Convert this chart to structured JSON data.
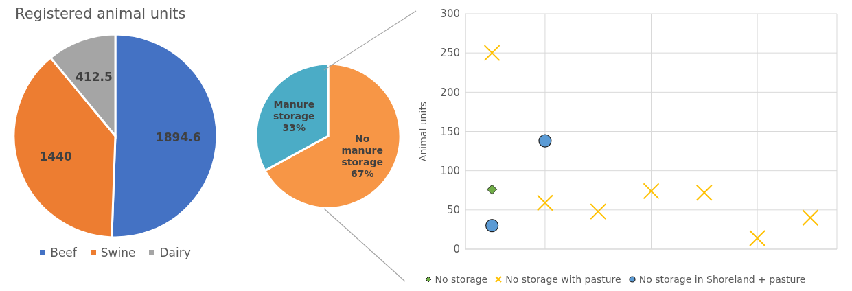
{
  "chart_data": [
    {
      "type": "pie",
      "title": "Registered animal units",
      "categories": [
        "Beef",
        "Swine",
        "Dairy"
      ],
      "values": [
        1894.6,
        1440,
        412.5
      ],
      "colors": [
        "#4472c4",
        "#ed7d31",
        "#a5a5a5"
      ],
      "data_labels": true,
      "legend": "bottom"
    },
    {
      "type": "pie",
      "categories": [
        "No manure storage",
        "Manure storage"
      ],
      "values": [
        67,
        33
      ],
      "colors": [
        "#f79646",
        "#4bacc6"
      ],
      "value_labels": [
        "67%",
        "33%"
      ],
      "legend": false
    },
    {
      "type": "scatter",
      "ylabel": "Animal units",
      "categories": [
        null,
        null,
        null,
        null,
        null,
        null,
        null
      ],
      "ylim": [
        0,
        300
      ],
      "yticks": [
        0,
        50,
        100,
        150,
        200,
        250,
        300
      ],
      "grid": true,
      "legend": "bottom",
      "tick_labels": "y",
      "series": [
        {
          "name": "No storage",
          "color": "#70ad47",
          "marker": "diamond",
          "values": [
            76,
            null,
            null,
            null,
            null,
            null,
            null
          ]
        },
        {
          "name": "No storage with pasture",
          "color": "#ffc000",
          "marker": "cross",
          "values": [
            250,
            59,
            48,
            74,
            72,
            14,
            40
          ]
        },
        {
          "name": "No storage in Shoreland + pasture",
          "color": "#5b9bd5",
          "marker": "circle",
          "values": [
            30,
            138,
            null,
            null,
            null,
            null,
            null
          ]
        }
      ]
    }
  ]
}
